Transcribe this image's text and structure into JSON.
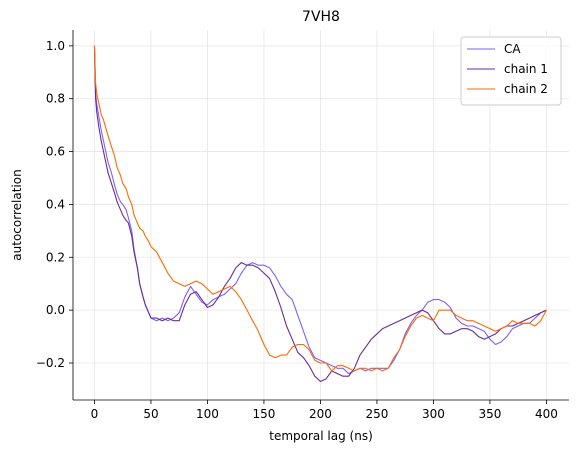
{
  "chart_data": {
    "type": "line",
    "title": "7VH8",
    "xlabel": "temporal lag (ns)",
    "ylabel": "autocorrelation",
    "xlim": [
      -19,
      420
    ],
    "ylim": [
      -0.34,
      1.06
    ],
    "xticks": [
      0,
      50,
      100,
      150,
      200,
      250,
      300,
      350,
      400
    ],
    "yticks": [
      -0.2,
      0.0,
      0.2,
      0.4,
      0.6,
      0.8,
      1.0
    ],
    "ytick_labels": [
      "−0.2",
      "0.0",
      "0.2",
      "0.4",
      "0.6",
      "0.8",
      "1.0"
    ],
    "grid": true,
    "legend_position": "top-right",
    "series": [
      {
        "name": "CA",
        "color": "#7b61ff",
        "x": [
          0,
          1,
          2,
          4,
          6,
          8,
          10,
          12,
          15,
          18,
          20,
          23,
          25,
          28,
          30,
          33,
          35,
          38,
          40,
          43,
          45,
          48,
          50,
          55,
          60,
          65,
          70,
          75,
          80,
          85,
          90,
          95,
          100,
          105,
          110,
          115,
          120,
          125,
          130,
          135,
          140,
          145,
          150,
          155,
          160,
          165,
          170,
          175,
          180,
          185,
          190,
          195,
          200,
          205,
          210,
          215,
          220,
          225,
          230,
          235,
          240,
          245,
          250,
          255,
          260,
          265,
          270,
          275,
          280,
          285,
          290,
          295,
          300,
          305,
          310,
          315,
          320,
          325,
          330,
          335,
          340,
          345,
          350,
          355,
          360,
          365,
          370,
          375,
          380,
          385,
          390,
          395,
          400
        ],
        "values": [
          1.0,
          0.82,
          0.78,
          0.73,
          0.68,
          0.64,
          0.6,
          0.56,
          0.52,
          0.47,
          0.44,
          0.41,
          0.4,
          0.38,
          0.35,
          0.3,
          0.23,
          0.16,
          0.1,
          0.05,
          0.02,
          -0.01,
          -0.03,
          -0.04,
          -0.03,
          -0.04,
          -0.03,
          -0.01,
          0.05,
          0.09,
          0.06,
          0.03,
          0.02,
          0.04,
          0.05,
          0.06,
          0.08,
          0.1,
          0.14,
          0.17,
          0.18,
          0.17,
          0.17,
          0.16,
          0.13,
          0.09,
          0.06,
          0.04,
          -0.02,
          -0.08,
          -0.14,
          -0.18,
          -0.19,
          -0.2,
          -0.21,
          -0.22,
          -0.22,
          -0.24,
          -0.23,
          -0.22,
          -0.23,
          -0.22,
          -0.22,
          -0.22,
          -0.22,
          -0.19,
          -0.15,
          -0.09,
          -0.05,
          -0.02,
          0.0,
          0.03,
          0.04,
          0.04,
          0.03,
          0.01,
          -0.03,
          -0.05,
          -0.06,
          -0.06,
          -0.07,
          -0.08,
          -0.11,
          -0.13,
          -0.12,
          -0.1,
          -0.07,
          -0.06,
          -0.05,
          -0.05,
          -0.03,
          -0.01,
          0.0
        ]
      },
      {
        "name": "chain 1",
        "color": "#6a2c91",
        "x": [
          0,
          1,
          2,
          4,
          6,
          8,
          10,
          12,
          15,
          18,
          20,
          23,
          25,
          28,
          30,
          33,
          35,
          38,
          40,
          43,
          45,
          48,
          50,
          55,
          60,
          65,
          70,
          75,
          80,
          85,
          90,
          95,
          100,
          105,
          110,
          115,
          120,
          125,
          130,
          135,
          140,
          145,
          150,
          155,
          160,
          165,
          170,
          175,
          180,
          185,
          190,
          195,
          200,
          205,
          210,
          215,
          220,
          225,
          230,
          235,
          240,
          245,
          250,
          255,
          260,
          265,
          270,
          275,
          280,
          285,
          290,
          295,
          300,
          305,
          310,
          315,
          320,
          325,
          330,
          335,
          340,
          345,
          350,
          355,
          360,
          365,
          370,
          375,
          380,
          385,
          390,
          395,
          400
        ],
        "values": [
          1.0,
          0.8,
          0.75,
          0.69,
          0.64,
          0.6,
          0.56,
          0.52,
          0.48,
          0.44,
          0.41,
          0.38,
          0.36,
          0.34,
          0.33,
          0.28,
          0.22,
          0.16,
          0.1,
          0.05,
          0.02,
          -0.01,
          -0.03,
          -0.03,
          -0.04,
          -0.03,
          -0.04,
          -0.04,
          0.02,
          0.06,
          0.07,
          0.04,
          0.01,
          0.02,
          0.05,
          0.09,
          0.12,
          0.16,
          0.18,
          0.17,
          0.17,
          0.16,
          0.14,
          0.12,
          0.07,
          0.01,
          -0.06,
          -0.11,
          -0.16,
          -0.18,
          -0.21,
          -0.25,
          -0.27,
          -0.26,
          -0.23,
          -0.24,
          -0.25,
          -0.25,
          -0.22,
          -0.17,
          -0.14,
          -0.11,
          -0.09,
          -0.07,
          -0.06,
          -0.05,
          -0.04,
          -0.03,
          -0.02,
          -0.01,
          0.0,
          -0.01,
          -0.04,
          -0.07,
          -0.09,
          -0.09,
          -0.08,
          -0.07,
          -0.07,
          -0.08,
          -0.1,
          -0.11,
          -0.1,
          -0.09,
          -0.07,
          -0.06,
          -0.06,
          -0.05,
          -0.04,
          -0.03,
          -0.02,
          -0.01,
          0.0
        ]
      },
      {
        "name": "chain 2",
        "color": "#ff6a00",
        "x": [
          0,
          1,
          2,
          4,
          6,
          8,
          10,
          12,
          15,
          18,
          20,
          23,
          25,
          28,
          30,
          33,
          35,
          38,
          40,
          43,
          45,
          48,
          50,
          55,
          60,
          65,
          70,
          75,
          80,
          85,
          90,
          95,
          100,
          105,
          110,
          115,
          120,
          125,
          130,
          135,
          140,
          145,
          150,
          155,
          160,
          165,
          170,
          175,
          180,
          185,
          190,
          195,
          200,
          205,
          210,
          215,
          220,
          225,
          230,
          235,
          240,
          245,
          250,
          255,
          260,
          265,
          270,
          275,
          280,
          285,
          290,
          295,
          300,
          305,
          310,
          315,
          320,
          325,
          330,
          335,
          340,
          345,
          350,
          355,
          360,
          365,
          370,
          375,
          380,
          385,
          390,
          395,
          400
        ],
        "values": [
          1.0,
          0.86,
          0.82,
          0.78,
          0.74,
          0.72,
          0.69,
          0.66,
          0.62,
          0.58,
          0.54,
          0.51,
          0.48,
          0.46,
          0.43,
          0.4,
          0.36,
          0.33,
          0.31,
          0.3,
          0.28,
          0.26,
          0.24,
          0.22,
          0.18,
          0.14,
          0.11,
          0.1,
          0.09,
          0.1,
          0.11,
          0.1,
          0.08,
          0.06,
          0.07,
          0.08,
          0.09,
          0.07,
          0.04,
          0.0,
          -0.04,
          -0.08,
          -0.13,
          -0.17,
          -0.18,
          -0.17,
          -0.17,
          -0.14,
          -0.13,
          -0.13,
          -0.15,
          -0.19,
          -0.2,
          -0.2,
          -0.23,
          -0.21,
          -0.21,
          -0.22,
          -0.23,
          -0.22,
          -0.22,
          -0.23,
          -0.22,
          -0.23,
          -0.22,
          -0.18,
          -0.15,
          -0.1,
          -0.06,
          -0.03,
          -0.02,
          -0.03,
          -0.04,
          0.0,
          0.0,
          0.0,
          -0.02,
          -0.03,
          -0.04,
          -0.04,
          -0.05,
          -0.06,
          -0.07,
          -0.08,
          -0.07,
          -0.06,
          -0.04,
          -0.05,
          -0.05,
          -0.05,
          -0.06,
          -0.04,
          0.0
        ]
      }
    ]
  }
}
